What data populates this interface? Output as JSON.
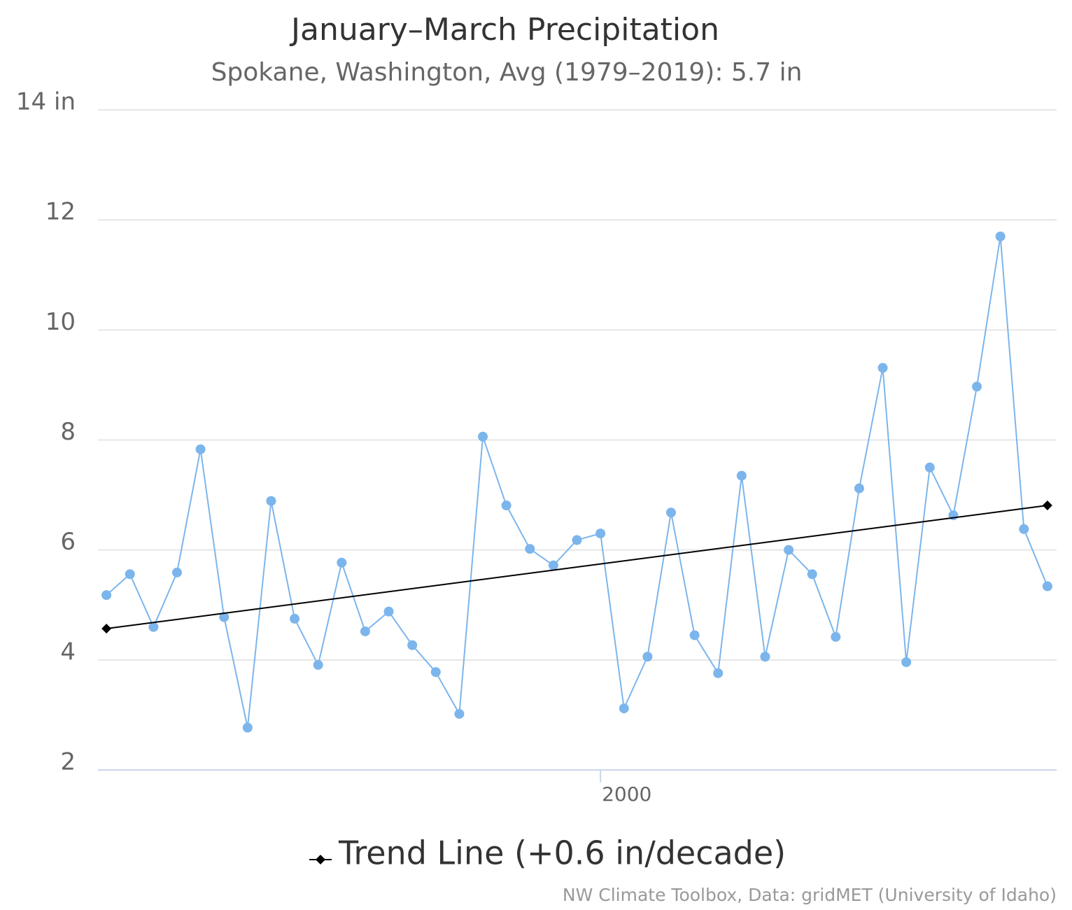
{
  "chart_data": {
    "type": "line",
    "title": "January–March Precipitation",
    "subtitle": "Spokane, Washington, Avg (1979–2019): 5.7 in",
    "credits": "NW Climate Toolbox, Data: gridMET (University of Idaho)",
    "x": [
      1979,
      1980,
      1981,
      1982,
      1983,
      1984,
      1985,
      1986,
      1987,
      1988,
      1989,
      1990,
      1991,
      1992,
      1993,
      1994,
      1995,
      1996,
      1997,
      1998,
      1999,
      2000,
      2001,
      2002,
      2003,
      2004,
      2005,
      2006,
      2007,
      2008,
      2009,
      2010,
      2011,
      2012,
      2013,
      2014,
      2015,
      2016,
      2017,
      2018,
      2019
    ],
    "series": [
      {
        "color": "#7cb5ec",
        "values": [
          5.18,
          5.56,
          4.6,
          5.59,
          7.83,
          4.78,
          2.77,
          6.89,
          4.75,
          3.91,
          5.77,
          4.52,
          4.88,
          4.27,
          3.78,
          3.02,
          8.06,
          6.81,
          6.02,
          5.72,
          6.18,
          6.3,
          3.12,
          4.06,
          6.68,
          4.45,
          3.76,
          7.35,
          4.06,
          6.0,
          5.56,
          4.42,
          7.12,
          9.31,
          3.96,
          7.5,
          6.63,
          8.97,
          11.7,
          6.38,
          5.34
        ]
      },
      {
        "name": "Trend Line (+0.6 in/decade)",
        "color": "#000000",
        "x": [
          1979,
          2019
        ],
        "values": [
          4.57,
          6.81
        ]
      }
    ],
    "xlim": [
      1978.64,
      2019.39
    ],
    "xticks": [
      2000
    ],
    "ylim": [
      2,
      14
    ],
    "yticks": [
      2,
      4,
      6,
      8,
      10,
      12,
      {
        "value": 14,
        "label": "14 in"
      }
    ],
    "grid": true
  }
}
